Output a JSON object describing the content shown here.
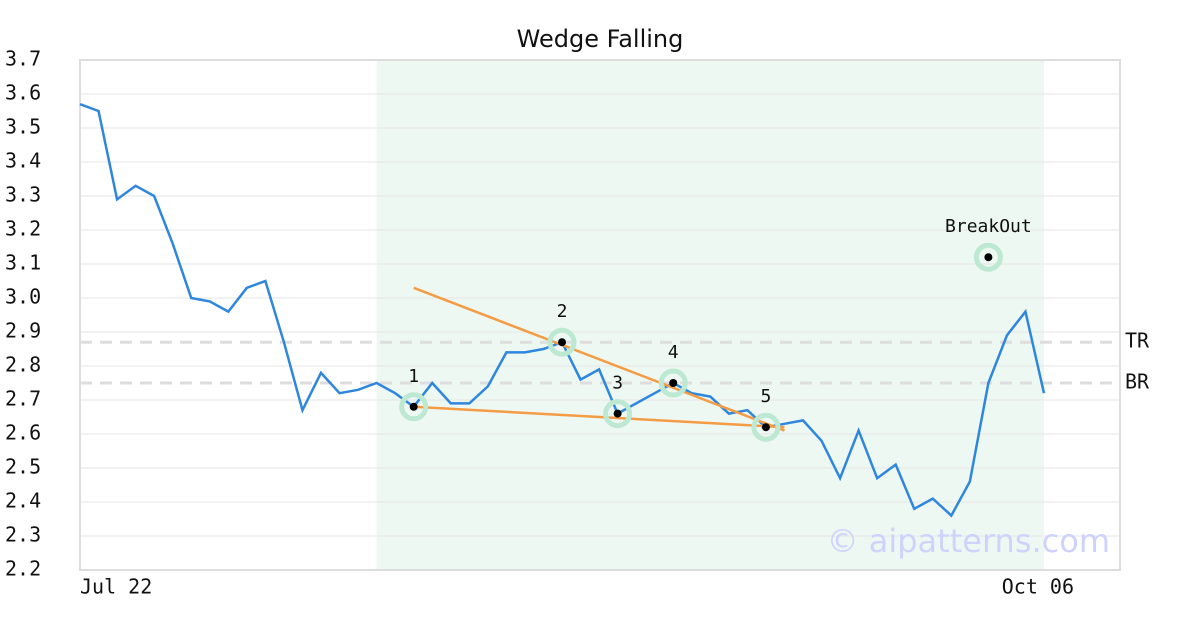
{
  "chart_data": {
    "type": "line",
    "title": "Wedge Falling",
    "categories": [
      "Jul 22",
      null,
      null,
      null,
      null,
      null,
      null,
      null,
      null,
      null,
      null,
      null,
      null,
      null,
      null,
      null,
      null,
      null,
      null,
      null,
      null,
      null,
      null,
      null,
      null,
      null,
      null,
      null,
      null,
      null,
      null,
      null,
      null,
      null,
      null,
      null,
      null,
      null,
      null,
      null,
      null,
      null,
      null,
      null,
      null,
      null,
      null,
      null,
      null,
      null,
      null,
      null,
      "Oct 06"
    ],
    "series": [
      {
        "color": "#2e86de",
        "values": [
          3.57,
          3.55,
          3.29,
          3.33,
          3.3,
          3.16,
          3.0,
          2.99,
          2.96,
          3.03,
          3.05,
          2.87,
          2.67,
          2.78,
          2.72,
          2.73,
          2.75,
          2.72,
          2.68,
          2.75,
          2.69,
          2.69,
          2.74,
          2.84,
          2.84,
          2.85,
          2.87,
          2.76,
          2.79,
          2.66,
          2.69,
          2.72,
          2.75,
          2.72,
          2.71,
          2.66,
          2.67,
          2.62,
          2.63,
          2.64,
          2.58,
          2.47,
          2.61,
          2.47,
          2.51,
          2.38,
          2.41,
          2.36,
          2.46,
          2.75,
          2.89,
          2.96,
          2.72
        ]
      }
    ],
    "ylim": [
      2.2,
      3.7
    ],
    "yticks": [
      2.2,
      2.3,
      2.4,
      2.5,
      2.6,
      2.7,
      2.8,
      2.9,
      {
        "value": 3,
        "label": "3.0"
      },
      3.1,
      3.2,
      3.3,
      3.4,
      3.5,
      3.6,
      3.7
    ],
    "grid": true,
    "shaded_range": [
      16,
      52
    ],
    "trendlines": [
      {
        "color": "#f39c44",
        "x": [
          18,
          38
        ],
        "values": [
          3.03,
          2.61
        ]
      },
      {
        "color": "#f39c44",
        "x": [
          18,
          38
        ],
        "values": [
          2.68,
          2.62
        ]
      }
    ],
    "levels": [
      {
        "label": "TR",
        "value": 2.87
      },
      {
        "label": "BR",
        "value": 2.75
      }
    ],
    "points": [
      {
        "label": "1",
        "x": 18,
        "value": 2.68
      },
      {
        "label": "2",
        "x": 26,
        "value": 2.87
      },
      {
        "label": "3",
        "x": 29,
        "value": 2.66
      },
      {
        "label": "4",
        "x": 32,
        "value": 2.75
      },
      {
        "label": "5",
        "x": 37,
        "value": 2.62
      },
      {
        "label": "BreakOut",
        "x": 49,
        "value": 3.12
      }
    ],
    "watermark": "© aipatterns.com"
  }
}
